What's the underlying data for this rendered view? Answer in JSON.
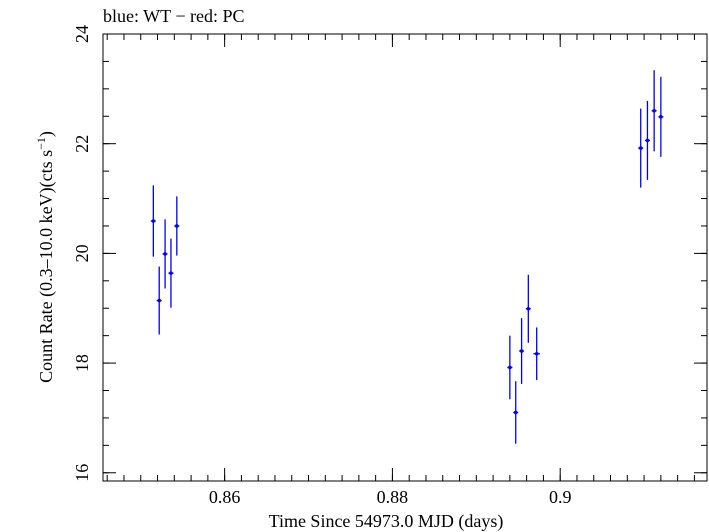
{
  "chart_data": {
    "type": "scatter",
    "title": "blue: WT − red: PC",
    "xlabel": "Time Since 54973.0 MJD (days)",
    "ylabel_main": "Count Rate (0.3–10.0 keV)(cts s",
    "ylabel_sup": "−1",
    "ylabel_end": ")",
    "xlim": [
      0.8455,
      0.9175
    ],
    "ylim": [
      15.85,
      24.0
    ],
    "x_ticks": [
      0.86,
      0.88,
      0.9
    ],
    "x_tick_labels": [
      "0.86",
      "0.88",
      "0.9"
    ],
    "y_ticks": [
      16,
      18,
      20,
      22,
      24
    ],
    "y_tick_labels": [
      "16",
      "18",
      "20",
      "22",
      "24"
    ],
    "x_minor_step": 0.002,
    "y_minor_step": 0.5,
    "grid": false,
    "series": [
      {
        "color": "#0000ff",
        "points": [
          {
            "x": 0.8515,
            "y": 20.59,
            "yerr": 0.65,
            "xerr": 0.0003
          },
          {
            "x": 0.8522,
            "y": 19.14,
            "yerr": 0.62,
            "xerr": 0.0003
          },
          {
            "x": 0.8529,
            "y": 19.99,
            "yerr": 0.63,
            "xerr": 0.0003
          },
          {
            "x": 0.8536,
            "y": 19.64,
            "yerr": 0.63,
            "xerr": 0.0003
          },
          {
            "x": 0.8543,
            "y": 20.5,
            "yerr": 0.54,
            "xerr": 0.0003
          },
          {
            "x": 0.894,
            "y": 17.92,
            "yerr": 0.58,
            "xerr": 0.0003
          },
          {
            "x": 0.8947,
            "y": 17.1,
            "yerr": 0.57,
            "xerr": 0.0003
          },
          {
            "x": 0.8954,
            "y": 18.22,
            "yerr": 0.6,
            "xerr": 0.0003
          },
          {
            "x": 0.8962,
            "y": 18.99,
            "yerr": 0.62,
            "xerr": 0.0003
          },
          {
            "x": 0.8972,
            "y": 18.17,
            "yerr": 0.48,
            "xerr": 0.0004
          },
          {
            "x": 0.9096,
            "y": 21.92,
            "yerr": 0.72,
            "xerr": 0.0003
          },
          {
            "x": 0.9104,
            "y": 22.06,
            "yerr": 0.72,
            "xerr": 0.0003
          },
          {
            "x": 0.9112,
            "y": 22.6,
            "yerr": 0.74,
            "xerr": 0.0003
          },
          {
            "x": 0.912,
            "y": 22.49,
            "yerr": 0.73,
            "xerr": 0.0003
          }
        ]
      }
    ]
  }
}
